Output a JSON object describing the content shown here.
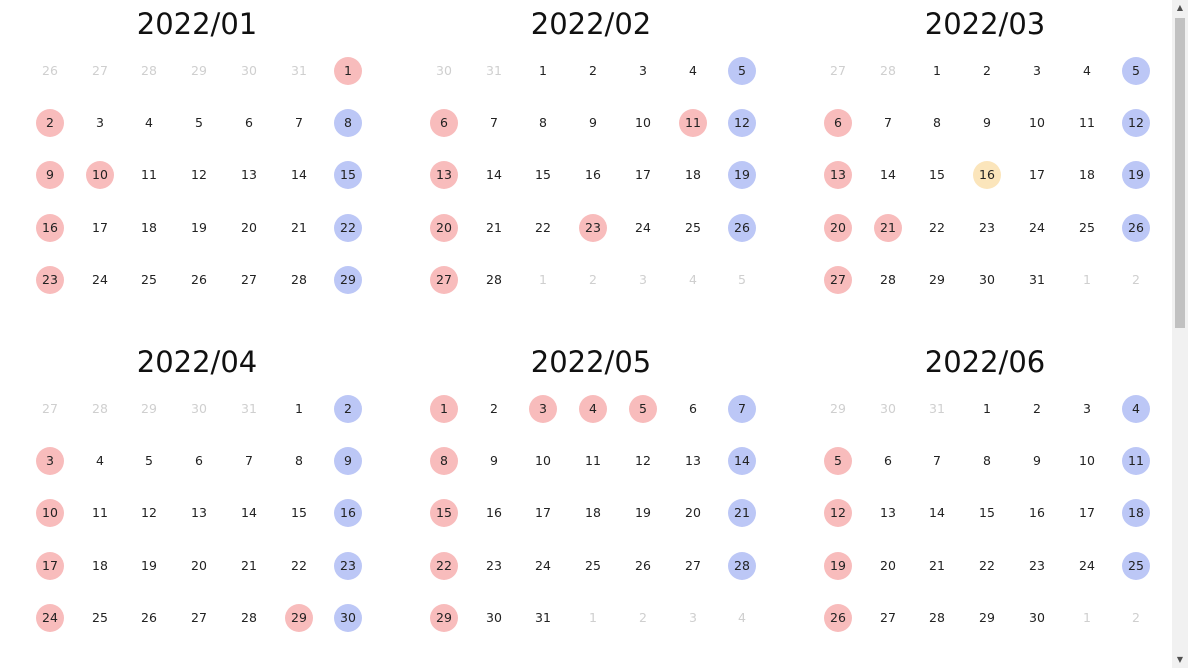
{
  "months": [
    {
      "title": "2022/01",
      "days": [
        {
          "t": "26",
          "s": "out"
        },
        {
          "t": "27",
          "s": "out"
        },
        {
          "t": "28",
          "s": "out"
        },
        {
          "t": "29",
          "s": "out"
        },
        {
          "t": "30",
          "s": "out"
        },
        {
          "t": "31",
          "s": "out"
        },
        {
          "t": "1",
          "s": "holiday"
        },
        {
          "t": "2",
          "s": "holiday"
        },
        {
          "t": "3",
          "s": ""
        },
        {
          "t": "4",
          "s": ""
        },
        {
          "t": "5",
          "s": ""
        },
        {
          "t": "6",
          "s": ""
        },
        {
          "t": "7",
          "s": ""
        },
        {
          "t": "8",
          "s": "weekend"
        },
        {
          "t": "9",
          "s": "holiday"
        },
        {
          "t": "10",
          "s": "holiday"
        },
        {
          "t": "11",
          "s": ""
        },
        {
          "t": "12",
          "s": ""
        },
        {
          "t": "13",
          "s": ""
        },
        {
          "t": "14",
          "s": ""
        },
        {
          "t": "15",
          "s": "weekend"
        },
        {
          "t": "16",
          "s": "holiday"
        },
        {
          "t": "17",
          "s": ""
        },
        {
          "t": "18",
          "s": ""
        },
        {
          "t": "19",
          "s": ""
        },
        {
          "t": "20",
          "s": ""
        },
        {
          "t": "21",
          "s": ""
        },
        {
          "t": "22",
          "s": "weekend"
        },
        {
          "t": "23",
          "s": "holiday"
        },
        {
          "t": "24",
          "s": ""
        },
        {
          "t": "25",
          "s": ""
        },
        {
          "t": "26",
          "s": ""
        },
        {
          "t": "27",
          "s": ""
        },
        {
          "t": "28",
          "s": ""
        },
        {
          "t": "29",
          "s": "weekend"
        }
      ]
    },
    {
      "title": "2022/02",
      "days": [
        {
          "t": "30",
          "s": "out"
        },
        {
          "t": "31",
          "s": "out"
        },
        {
          "t": "1",
          "s": ""
        },
        {
          "t": "2",
          "s": ""
        },
        {
          "t": "3",
          "s": ""
        },
        {
          "t": "4",
          "s": ""
        },
        {
          "t": "5",
          "s": "weekend"
        },
        {
          "t": "6",
          "s": "holiday"
        },
        {
          "t": "7",
          "s": ""
        },
        {
          "t": "8",
          "s": ""
        },
        {
          "t": "9",
          "s": ""
        },
        {
          "t": "10",
          "s": ""
        },
        {
          "t": "11",
          "s": "holiday"
        },
        {
          "t": "12",
          "s": "weekend"
        },
        {
          "t": "13",
          "s": "holiday"
        },
        {
          "t": "14",
          "s": ""
        },
        {
          "t": "15",
          "s": ""
        },
        {
          "t": "16",
          "s": ""
        },
        {
          "t": "17",
          "s": ""
        },
        {
          "t": "18",
          "s": ""
        },
        {
          "t": "19",
          "s": "weekend"
        },
        {
          "t": "20",
          "s": "holiday"
        },
        {
          "t": "21",
          "s": ""
        },
        {
          "t": "22",
          "s": ""
        },
        {
          "t": "23",
          "s": "holiday"
        },
        {
          "t": "24",
          "s": ""
        },
        {
          "t": "25",
          "s": ""
        },
        {
          "t": "26",
          "s": "weekend"
        },
        {
          "t": "27",
          "s": "holiday"
        },
        {
          "t": "28",
          "s": ""
        },
        {
          "t": "1",
          "s": "out"
        },
        {
          "t": "2",
          "s": "out"
        },
        {
          "t": "3",
          "s": "out"
        },
        {
          "t": "4",
          "s": "out"
        },
        {
          "t": "5",
          "s": "out"
        }
      ]
    },
    {
      "title": "2022/03",
      "days": [
        {
          "t": "27",
          "s": "out"
        },
        {
          "t": "28",
          "s": "out"
        },
        {
          "t": "1",
          "s": ""
        },
        {
          "t": "2",
          "s": ""
        },
        {
          "t": "3",
          "s": ""
        },
        {
          "t": "4",
          "s": ""
        },
        {
          "t": "5",
          "s": "weekend"
        },
        {
          "t": "6",
          "s": "holiday"
        },
        {
          "t": "7",
          "s": ""
        },
        {
          "t": "8",
          "s": ""
        },
        {
          "t": "9",
          "s": ""
        },
        {
          "t": "10",
          "s": ""
        },
        {
          "t": "11",
          "s": ""
        },
        {
          "t": "12",
          "s": "weekend"
        },
        {
          "t": "13",
          "s": "holiday"
        },
        {
          "t": "14",
          "s": ""
        },
        {
          "t": "15",
          "s": ""
        },
        {
          "t": "16",
          "s": "today"
        },
        {
          "t": "17",
          "s": ""
        },
        {
          "t": "18",
          "s": ""
        },
        {
          "t": "19",
          "s": "weekend"
        },
        {
          "t": "20",
          "s": "holiday"
        },
        {
          "t": "21",
          "s": "holiday"
        },
        {
          "t": "22",
          "s": ""
        },
        {
          "t": "23",
          "s": ""
        },
        {
          "t": "24",
          "s": ""
        },
        {
          "t": "25",
          "s": ""
        },
        {
          "t": "26",
          "s": "weekend"
        },
        {
          "t": "27",
          "s": "holiday"
        },
        {
          "t": "28",
          "s": ""
        },
        {
          "t": "29",
          "s": ""
        },
        {
          "t": "30",
          "s": ""
        },
        {
          "t": "31",
          "s": ""
        },
        {
          "t": "1",
          "s": "out"
        },
        {
          "t": "2",
          "s": "out"
        }
      ]
    },
    {
      "title": "2022/04",
      "days": [
        {
          "t": "27",
          "s": "out"
        },
        {
          "t": "28",
          "s": "out"
        },
        {
          "t": "29",
          "s": "out"
        },
        {
          "t": "30",
          "s": "out"
        },
        {
          "t": "31",
          "s": "out"
        },
        {
          "t": "1",
          "s": ""
        },
        {
          "t": "2",
          "s": "weekend"
        },
        {
          "t": "3",
          "s": "holiday"
        },
        {
          "t": "4",
          "s": ""
        },
        {
          "t": "5",
          "s": ""
        },
        {
          "t": "6",
          "s": ""
        },
        {
          "t": "7",
          "s": ""
        },
        {
          "t": "8",
          "s": ""
        },
        {
          "t": "9",
          "s": "weekend"
        },
        {
          "t": "10",
          "s": "holiday"
        },
        {
          "t": "11",
          "s": ""
        },
        {
          "t": "12",
          "s": ""
        },
        {
          "t": "13",
          "s": ""
        },
        {
          "t": "14",
          "s": ""
        },
        {
          "t": "15",
          "s": ""
        },
        {
          "t": "16",
          "s": "weekend"
        },
        {
          "t": "17",
          "s": "holiday"
        },
        {
          "t": "18",
          "s": ""
        },
        {
          "t": "19",
          "s": ""
        },
        {
          "t": "20",
          "s": ""
        },
        {
          "t": "21",
          "s": ""
        },
        {
          "t": "22",
          "s": ""
        },
        {
          "t": "23",
          "s": "weekend"
        },
        {
          "t": "24",
          "s": "holiday"
        },
        {
          "t": "25",
          "s": ""
        },
        {
          "t": "26",
          "s": ""
        },
        {
          "t": "27",
          "s": ""
        },
        {
          "t": "28",
          "s": ""
        },
        {
          "t": "29",
          "s": "holiday"
        },
        {
          "t": "30",
          "s": "weekend"
        }
      ]
    },
    {
      "title": "2022/05",
      "days": [
        {
          "t": "1",
          "s": "holiday"
        },
        {
          "t": "2",
          "s": ""
        },
        {
          "t": "3",
          "s": "holiday"
        },
        {
          "t": "4",
          "s": "holiday"
        },
        {
          "t": "5",
          "s": "holiday"
        },
        {
          "t": "6",
          "s": ""
        },
        {
          "t": "7",
          "s": "weekend"
        },
        {
          "t": "8",
          "s": "holiday"
        },
        {
          "t": "9",
          "s": ""
        },
        {
          "t": "10",
          "s": ""
        },
        {
          "t": "11",
          "s": ""
        },
        {
          "t": "12",
          "s": ""
        },
        {
          "t": "13",
          "s": ""
        },
        {
          "t": "14",
          "s": "weekend"
        },
        {
          "t": "15",
          "s": "holiday"
        },
        {
          "t": "16",
          "s": ""
        },
        {
          "t": "17",
          "s": ""
        },
        {
          "t": "18",
          "s": ""
        },
        {
          "t": "19",
          "s": ""
        },
        {
          "t": "20",
          "s": ""
        },
        {
          "t": "21",
          "s": "weekend"
        },
        {
          "t": "22",
          "s": "holiday"
        },
        {
          "t": "23",
          "s": ""
        },
        {
          "t": "24",
          "s": ""
        },
        {
          "t": "25",
          "s": ""
        },
        {
          "t": "26",
          "s": ""
        },
        {
          "t": "27",
          "s": ""
        },
        {
          "t": "28",
          "s": "weekend"
        },
        {
          "t": "29",
          "s": "holiday"
        },
        {
          "t": "30",
          "s": ""
        },
        {
          "t": "31",
          "s": ""
        },
        {
          "t": "1",
          "s": "out"
        },
        {
          "t": "2",
          "s": "out"
        },
        {
          "t": "3",
          "s": "out"
        },
        {
          "t": "4",
          "s": "out"
        }
      ]
    },
    {
      "title": "2022/06",
      "days": [
        {
          "t": "29",
          "s": "out"
        },
        {
          "t": "30",
          "s": "out"
        },
        {
          "t": "31",
          "s": "out"
        },
        {
          "t": "1",
          "s": ""
        },
        {
          "t": "2",
          "s": ""
        },
        {
          "t": "3",
          "s": ""
        },
        {
          "t": "4",
          "s": "weekend"
        },
        {
          "t": "5",
          "s": "holiday"
        },
        {
          "t": "6",
          "s": ""
        },
        {
          "t": "7",
          "s": ""
        },
        {
          "t": "8",
          "s": ""
        },
        {
          "t": "9",
          "s": ""
        },
        {
          "t": "10",
          "s": ""
        },
        {
          "t": "11",
          "s": "weekend"
        },
        {
          "t": "12",
          "s": "holiday"
        },
        {
          "t": "13",
          "s": ""
        },
        {
          "t": "14",
          "s": ""
        },
        {
          "t": "15",
          "s": ""
        },
        {
          "t": "16",
          "s": ""
        },
        {
          "t": "17",
          "s": ""
        },
        {
          "t": "18",
          "s": "weekend"
        },
        {
          "t": "19",
          "s": "holiday"
        },
        {
          "t": "20",
          "s": ""
        },
        {
          "t": "21",
          "s": ""
        },
        {
          "t": "22",
          "s": ""
        },
        {
          "t": "23",
          "s": ""
        },
        {
          "t": "24",
          "s": ""
        },
        {
          "t": "25",
          "s": "weekend"
        },
        {
          "t": "26",
          "s": "holiday"
        },
        {
          "t": "27",
          "s": ""
        },
        {
          "t": "28",
          "s": ""
        },
        {
          "t": "29",
          "s": ""
        },
        {
          "t": "30",
          "s": ""
        },
        {
          "t": "1",
          "s": "out"
        },
        {
          "t": "2",
          "s": "out"
        }
      ]
    }
  ],
  "colors": {
    "holiday": "#f8bcbc",
    "weekend": "#bcc7f6",
    "today": "#fbe5bb",
    "out_of_month_text": "#cfcfcf"
  },
  "scrollbar": {
    "up_icon": "triangle-up-icon",
    "down_icon": "triangle-down-icon"
  }
}
